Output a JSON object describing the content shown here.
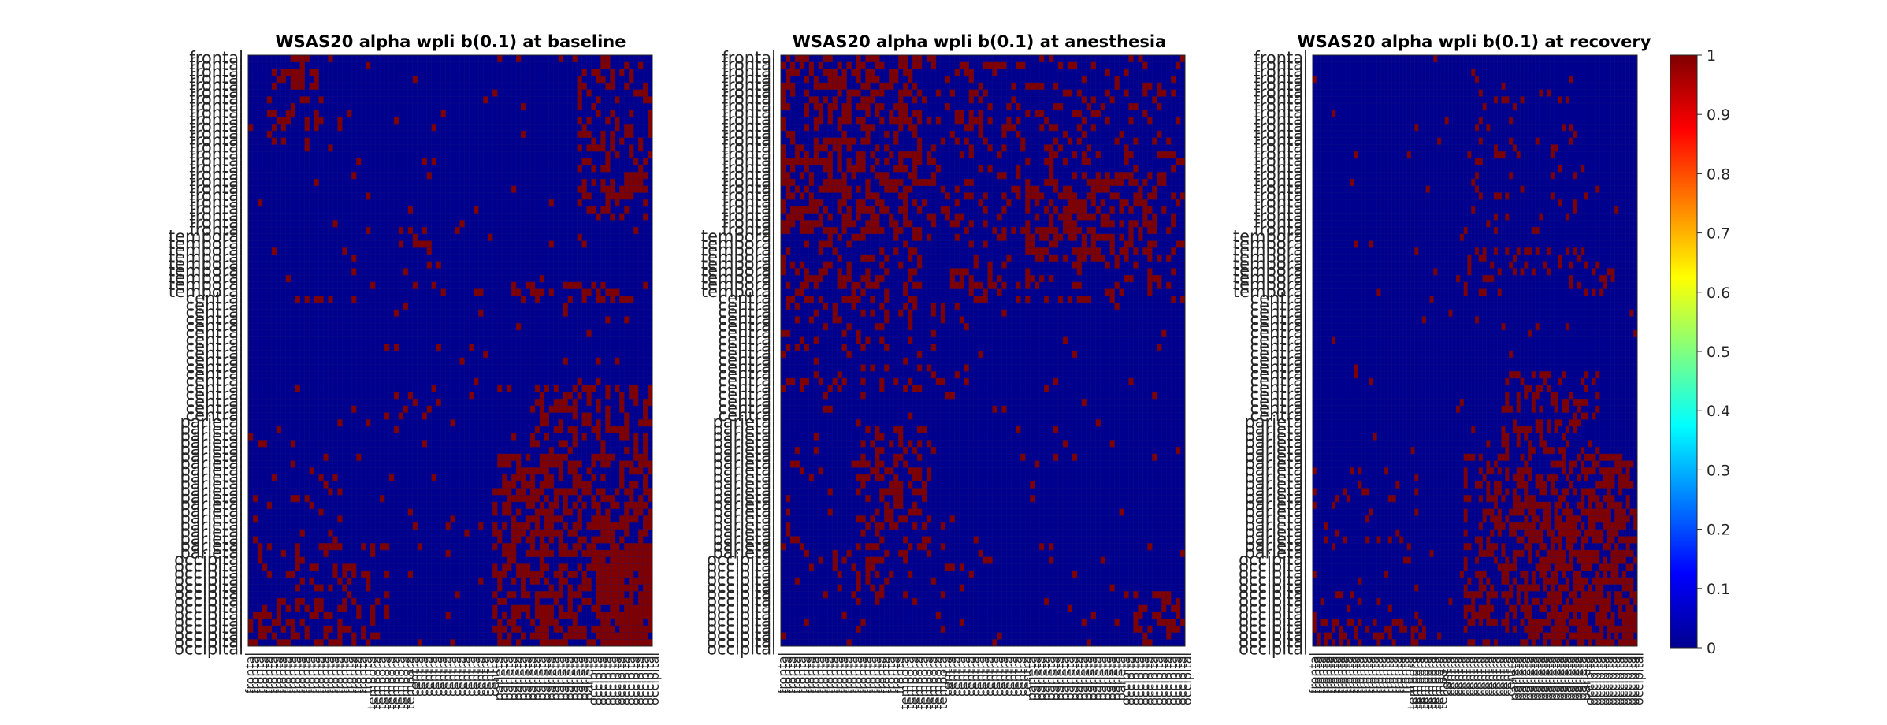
{
  "chart_data": [
    {
      "type": "heatmap",
      "title": "WSAS20 alpha wpli b(0.1) at baseline",
      "n_channels": 86,
      "clim": [
        0,
        1
      ],
      "colormap": "jet",
      "region_labels_y": [
        "frontal",
        "frontal",
        "frontal",
        "frontal",
        "frontal",
        "frontal",
        "frontal",
        "frontal",
        "frontal",
        "frontal",
        "frontal",
        "frontal",
        "frontal",
        "frontal",
        "frontal",
        "frontal",
        "frontal",
        "frontal",
        "frontal",
        "frontal",
        "frontal",
        "frontal",
        "frontal",
        "frontal",
        "frontal",
        "frontal",
        "temporal",
        "temporal",
        "temporal",
        "temporal",
        "temporal",
        "temporal",
        "temporal",
        "temporal",
        "temporal",
        "central",
        "central",
        "central",
        "central",
        "central",
        "central",
        "central",
        "central",
        "central",
        "central",
        "central",
        "central",
        "central",
        "central",
        "central",
        "central",
        "central",
        "central",
        "parietal",
        "parietal",
        "parietal",
        "parietal",
        "parietal",
        "parietal",
        "parietal",
        "parietal",
        "parietal",
        "parietal",
        "parietal",
        "parietal",
        "parietal",
        "parietal",
        "parietal",
        "parietal",
        "parietal",
        "parietal",
        "parietal",
        "parietal",
        "occipital",
        "occipital",
        "occipital",
        "occipital",
        "occipital",
        "occipital",
        "occipital",
        "occipital",
        "occipital",
        "occipital",
        "occipital",
        "occipital",
        "occipital",
        "occipital"
      ],
      "region_labels_x": [
        "frontal",
        "frontal",
        "frontal",
        "frontal",
        "frontal",
        "frontal",
        "frontal",
        "frontal",
        "frontal",
        "frontal",
        "frontal",
        "frontal",
        "frontal",
        "frontal",
        "frontal",
        "frontal",
        "frontal",
        "frontal",
        "frontal",
        "frontal",
        "frontal",
        "frontal",
        "frontal",
        "frontal",
        "frontal",
        "frontal",
        "temporal",
        "temporal",
        "temporal",
        "temporal",
        "temporal",
        "temporal",
        "temporal",
        "temporal",
        "temporal",
        "central",
        "central",
        "central",
        "central",
        "central",
        "central",
        "central",
        "central",
        "central",
        "central",
        "central",
        "central",
        "central",
        "central",
        "central",
        "central",
        "central",
        "central",
        "parietal",
        "parietal",
        "parietal",
        "parietal",
        "parietal",
        "parietal",
        "parietal",
        "parietal",
        "parietal",
        "parietal",
        "parietal",
        "parietal",
        "parietal",
        "parietal",
        "parietal",
        "parietal",
        "parietal",
        "parietal",
        "parietal",
        "parietal",
        "occipital",
        "occipital",
        "occipital",
        "occipital",
        "occipital",
        "occipital",
        "occipital",
        "occipital",
        "occipital",
        "occipital",
        "occipital",
        "occipital",
        "occipital",
        "occipital"
      ],
      "blocks": [
        {
          "r": [
            0,
            1
          ],
          "c": [
            9,
            18
          ],
          "d": 0.45
        },
        {
          "r": [
            0,
            1
          ],
          "c": [
            62,
            74
          ],
          "d": 0.3
        },
        {
          "r": [
            2,
            5
          ],
          "c": [
            4,
            16
          ],
          "d": 0.4
        },
        {
          "r": [
            6,
            11
          ],
          "c": [
            4,
            16
          ],
          "d": 0.3
        },
        {
          "r": [
            0,
            24
          ],
          "c": [
            70,
            86
          ],
          "d": 0.3
        },
        {
          "r": [
            13,
            26
          ],
          "c": [
            76,
            86
          ],
          "d": 0.12
        },
        {
          "r": [
            33,
            36
          ],
          "c": [
            56,
            82
          ],
          "d": 0.35
        },
        {
          "r": [
            34,
            36
          ],
          "c": [
            10,
            28
          ],
          "d": 0.15
        },
        {
          "r": [
            48,
            58
          ],
          "c": [
            60,
            86
          ],
          "d": 0.35
        },
        {
          "r": [
            58,
            66
          ],
          "c": [
            52,
            86
          ],
          "d": 0.55
        },
        {
          "r": [
            66,
            86
          ],
          "c": [
            52,
            86
          ],
          "d": 0.55
        },
        {
          "r": [
            72,
            86
          ],
          "c": [
            74,
            86
          ],
          "d": 0.75
        },
        {
          "r": [
            71,
            86
          ],
          "c": [
            2,
            30
          ],
          "d": 0.2
        },
        {
          "r": [
            80,
            86
          ],
          "c": [
            0,
            30
          ],
          "d": 0.25
        },
        {
          "r": [
            55,
            72
          ],
          "c": [
            0,
            20
          ],
          "d": 0.06
        },
        {
          "r": [
            25,
            55
          ],
          "c": [
            30,
            55
          ],
          "d": 0.03
        },
        {
          "r": [
            0,
            40
          ],
          "c": [
            35,
            40
          ],
          "d": 0.06
        },
        {
          "r": [
            0,
            86
          ],
          "c": [
            0,
            86
          ],
          "d": 0.02
        }
      ]
    },
    {
      "type": "heatmap",
      "title": "WSAS20 alpha wpli b(0.1) at anesthesia",
      "n_channels": 86,
      "clim": [
        0,
        1
      ],
      "colormap": "jet",
      "region_labels_y": [
        "frontal",
        "frontal",
        "frontal",
        "frontal",
        "frontal",
        "frontal",
        "frontal",
        "frontal",
        "frontal",
        "frontal",
        "frontal",
        "frontal",
        "frontal",
        "frontal",
        "frontal",
        "frontal",
        "frontal",
        "frontal",
        "frontal",
        "frontal",
        "frontal",
        "frontal",
        "frontal",
        "frontal",
        "frontal",
        "frontal",
        "temporal",
        "temporal",
        "temporal",
        "temporal",
        "temporal",
        "temporal",
        "temporal",
        "temporal",
        "temporal",
        "central",
        "central",
        "central",
        "central",
        "central",
        "central",
        "central",
        "central",
        "central",
        "central",
        "central",
        "central",
        "central",
        "central",
        "central",
        "central",
        "central",
        "central",
        "parietal",
        "parietal",
        "parietal",
        "parietal",
        "parietal",
        "parietal",
        "parietal",
        "parietal",
        "parietal",
        "parietal",
        "parietal",
        "parietal",
        "parietal",
        "parietal",
        "parietal",
        "parietal",
        "parietal",
        "parietal",
        "parietal",
        "parietal",
        "occipital",
        "occipital",
        "occipital",
        "occipital",
        "occipital",
        "occipital",
        "occipital",
        "occipital",
        "occipital",
        "occipital",
        "occipital",
        "occipital",
        "occipital",
        "occipital"
      ],
      "region_labels_x": [
        "frontal",
        "frontal",
        "frontal",
        "frontal",
        "frontal",
        "frontal",
        "frontal",
        "frontal",
        "frontal",
        "frontal",
        "frontal",
        "frontal",
        "frontal",
        "frontal",
        "frontal",
        "frontal",
        "frontal",
        "frontal",
        "frontal",
        "frontal",
        "frontal",
        "frontal",
        "frontal",
        "frontal",
        "frontal",
        "frontal",
        "temporal",
        "temporal",
        "temporal",
        "temporal",
        "temporal",
        "temporal",
        "temporal",
        "temporal",
        "temporal",
        "central",
        "central",
        "central",
        "central",
        "central",
        "central",
        "central",
        "central",
        "central",
        "central",
        "central",
        "central",
        "central",
        "central",
        "central",
        "central",
        "central",
        "central",
        "parietal",
        "parietal",
        "parietal",
        "parietal",
        "parietal",
        "parietal",
        "parietal",
        "parietal",
        "parietal",
        "parietal",
        "parietal",
        "parietal",
        "parietal",
        "parietal",
        "parietal",
        "parietal",
        "parietal",
        "parietal",
        "parietal",
        "parietal",
        "occipital",
        "occipital",
        "occipital",
        "occipital",
        "occipital",
        "occipital",
        "occipital",
        "occipital",
        "occipital",
        "occipital",
        "occipital",
        "occipital",
        "occipital",
        "occipital"
      ],
      "blocks": [
        {
          "r": [
            0,
            26
          ],
          "c": [
            0,
            30
          ],
          "d": 0.45
        },
        {
          "r": [
            0,
            26
          ],
          "c": [
            30,
            60
          ],
          "d": 0.2
        },
        {
          "r": [
            0,
            26
          ],
          "c": [
            60,
            86
          ],
          "d": 0.18
        },
        {
          "r": [
            18,
            30
          ],
          "c": [
            52,
            80
          ],
          "d": 0.4
        },
        {
          "r": [
            26,
            36
          ],
          "c": [
            0,
            30
          ],
          "d": 0.35
        },
        {
          "r": [
            26,
            36
          ],
          "c": [
            40,
            86
          ],
          "d": 0.2
        },
        {
          "r": [
            36,
            50
          ],
          "c": [
            0,
            40
          ],
          "d": 0.15
        },
        {
          "r": [
            54,
            72
          ],
          "c": [
            16,
            32
          ],
          "d": 0.35
        },
        {
          "r": [
            55,
            72
          ],
          "c": [
            0,
            8
          ],
          "d": 0.12
        },
        {
          "r": [
            72,
            80
          ],
          "c": [
            10,
            45
          ],
          "d": 0.15
        },
        {
          "r": [
            78,
            86
          ],
          "c": [
            75,
            86
          ],
          "d": 0.4
        },
        {
          "r": [
            30,
            34
          ],
          "c": [
            36,
            46
          ],
          "d": 0.4
        },
        {
          "r": [
            0,
            86
          ],
          "c": [
            0,
            86
          ],
          "d": 0.02
        }
      ]
    },
    {
      "type": "heatmap",
      "title": "WSAS20 alpha wpli b(0.1) at recovery",
      "n_channels": 86,
      "clim": [
        0,
        1
      ],
      "colormap": "jet",
      "region_labels_y": [
        "frontal",
        "frontal",
        "frontal",
        "frontal",
        "frontal",
        "frontal",
        "frontal",
        "frontal",
        "frontal",
        "frontal",
        "frontal",
        "frontal",
        "frontal",
        "frontal",
        "frontal",
        "frontal",
        "frontal",
        "frontal",
        "frontal",
        "frontal",
        "frontal",
        "frontal",
        "frontal",
        "frontal",
        "frontal",
        "frontal",
        "temporal",
        "temporal",
        "temporal",
        "temporal",
        "temporal",
        "temporal",
        "temporal",
        "temporal",
        "temporal",
        "central",
        "central",
        "central",
        "central",
        "central",
        "central",
        "central",
        "central",
        "central",
        "central",
        "central",
        "central",
        "central",
        "central",
        "central",
        "central",
        "central",
        "central",
        "parietal",
        "parietal",
        "parietal",
        "parietal",
        "parietal",
        "parietal",
        "parietal",
        "parietal",
        "parietal",
        "parietal",
        "parietal",
        "parietal",
        "parietal",
        "parietal",
        "parietal",
        "parietal",
        "parietal",
        "parietal",
        "parietal",
        "parietal",
        "occipital",
        "occipital",
        "occipital",
        "occipital",
        "occipital",
        "occipital",
        "occipital",
        "occipital",
        "occipital",
        "occipital",
        "occipital",
        "occipital",
        "occipital",
        "occipital"
      ],
      "region_labels_x": [
        "frontal",
        "frontal",
        "frontal",
        "frontal",
        "frontal",
        "frontal",
        "frontal",
        "frontal",
        "frontal",
        "frontal",
        "frontal",
        "frontal",
        "frontal",
        "frontal",
        "frontal",
        "frontal",
        "frontal",
        "frontal",
        "frontal",
        "frontal",
        "frontal",
        "frontal",
        "frontal",
        "frontal",
        "frontal",
        "frontal",
        "temporal",
        "temporal",
        "temporal",
        "temporal",
        "temporal",
        "temporal",
        "temporal",
        "temporal",
        "temporal",
        "central",
        "central",
        "central",
        "central",
        "central",
        "central",
        "central",
        "central",
        "central",
        "central",
        "central",
        "central",
        "central",
        "central",
        "central",
        "central",
        "central",
        "central",
        "parietal",
        "parietal",
        "parietal",
        "parietal",
        "parietal",
        "parietal",
        "parietal",
        "parietal",
        "parietal",
        "parietal",
        "parietal",
        "parietal",
        "parietal",
        "parietal",
        "parietal",
        "parietal",
        "parietal",
        "parietal",
        "parietal",
        "parietal",
        "occipital",
        "occipital",
        "occipital",
        "occipital",
        "occipital",
        "occipital",
        "occipital",
        "occipital",
        "occipital",
        "occipital",
        "occipital",
        "occipital",
        "occipital",
        "occipital"
      ],
      "blocks": [
        {
          "r": [
            4,
            26
          ],
          "c": [
            40,
            70
          ],
          "d": 0.08
        },
        {
          "r": [
            28,
            36
          ],
          "c": [
            40,
            80
          ],
          "d": 0.2
        },
        {
          "r": [
            46,
            58
          ],
          "c": [
            50,
            76
          ],
          "d": 0.35
        },
        {
          "r": [
            58,
            86
          ],
          "c": [
            40,
            86
          ],
          "d": 0.4
        },
        {
          "r": [
            66,
            86
          ],
          "c": [
            56,
            86
          ],
          "d": 0.45
        },
        {
          "r": [
            60,
            86
          ],
          "c": [
            0,
            30
          ],
          "d": 0.08
        },
        {
          "r": [
            82,
            86
          ],
          "c": [
            0,
            30
          ],
          "d": 0.3
        },
        {
          "r": [
            0,
            86
          ],
          "c": [
            0,
            86
          ],
          "d": 0.01
        }
      ]
    }
  ],
  "colorbar": {
    "ticks": [
      "0",
      "0.1",
      "0.2",
      "0.3",
      "0.4",
      "0.5",
      "0.6",
      "0.7",
      "0.8",
      "0.9",
      "1"
    ],
    "colormap": "jet"
  },
  "colors": {
    "low": "#00008f",
    "high": "#800000"
  }
}
